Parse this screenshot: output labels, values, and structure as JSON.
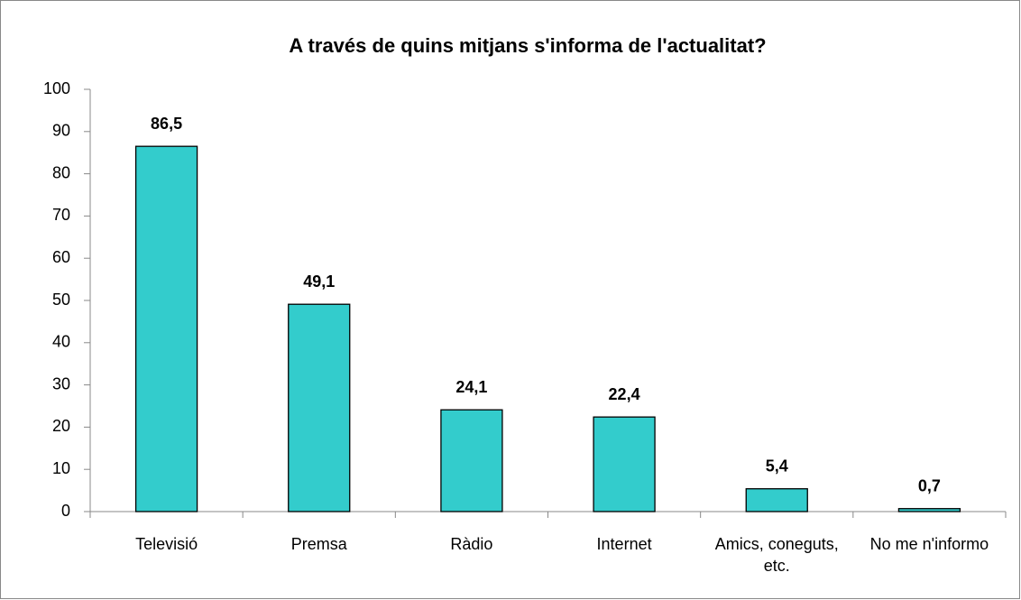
{
  "chart_data": {
    "type": "bar",
    "title": "A través de quins mitjans s'informa de l'actualitat?",
    "categories": [
      "Televisió",
      "Premsa",
      "Ràdio",
      "Internet",
      "Amics, coneguts, etc.",
      "No me n'informo"
    ],
    "values": [
      86.5,
      49.1,
      24.1,
      22.4,
      5.4,
      0.7
    ],
    "value_labels": [
      "86,5",
      "49,1",
      "24,1",
      "22,4",
      "5,4",
      "0,7"
    ],
    "color": "#33cccc",
    "ylim": [
      0,
      100
    ],
    "yticks": [
      0,
      10,
      20,
      30,
      40,
      50,
      60,
      70,
      80,
      90,
      100
    ],
    "grid": false
  }
}
